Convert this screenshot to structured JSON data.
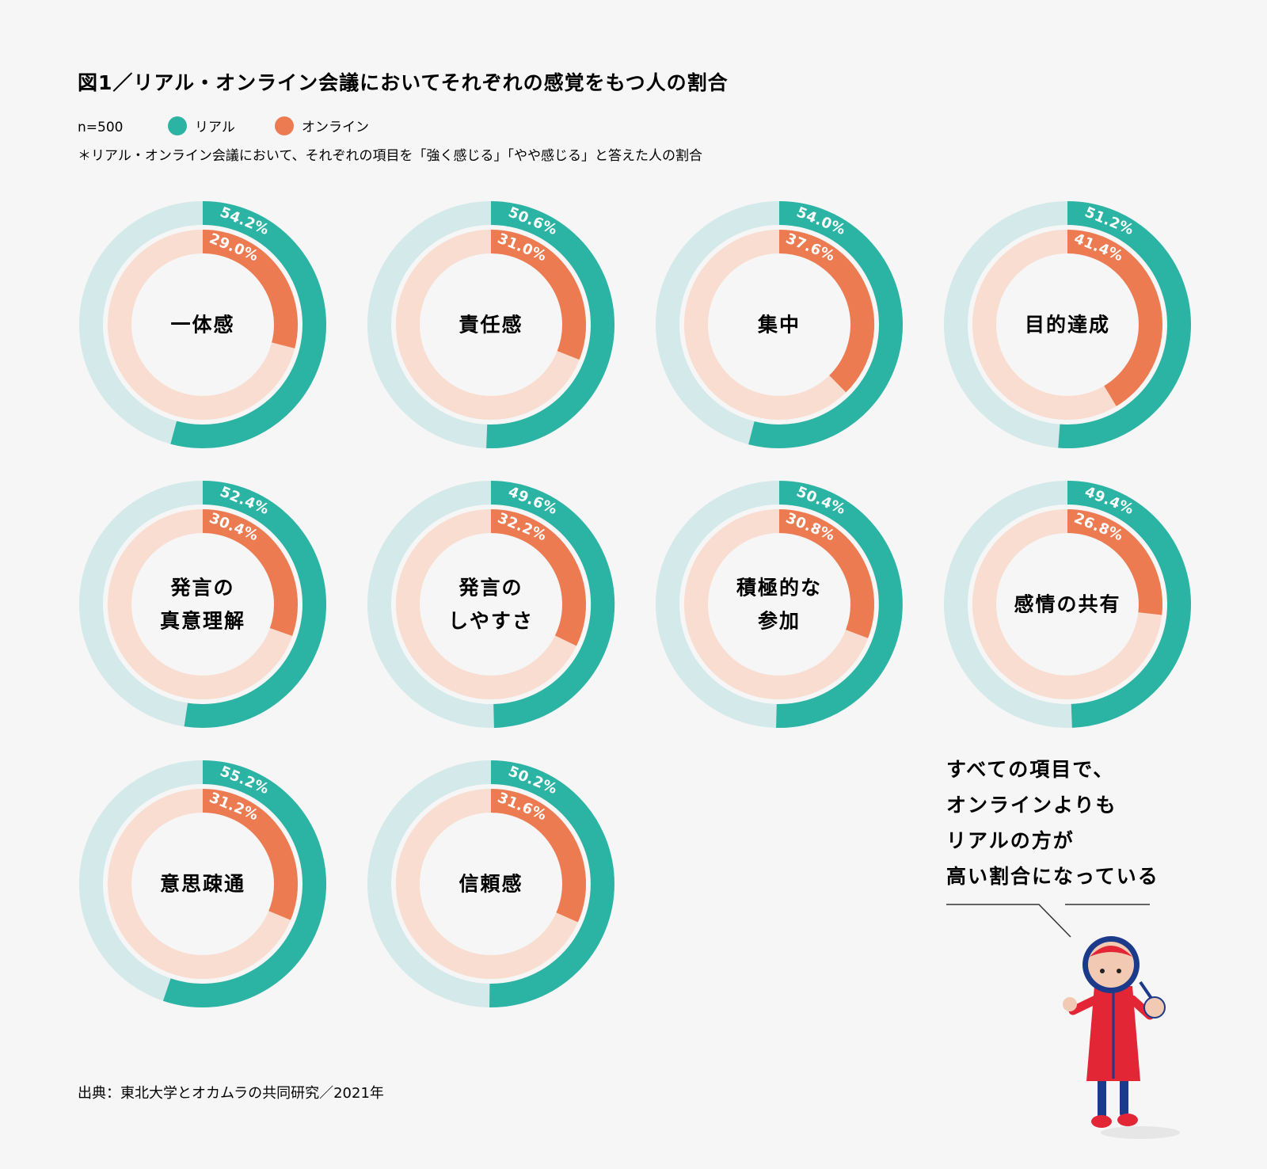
{
  "title": "図1／リアル・オンライン会議においてそれぞれの感覚をもつ人の割合",
  "sample_size": "n=500",
  "note": "＊リアル・オンライン会議において、それぞれの項目を「強く感じる」「やや感じる」と答えた人の割合",
  "source": "出典：東北大学とオカムラの共同研究／2021年",
  "callout": {
    "lines": [
      "すべての項目で、",
      "オンラインよりも",
      "リアルの方が",
      "高い割合になっている"
    ]
  },
  "colors": {
    "real": "#2bb3a3",
    "real_track": "#d3e9ea",
    "online": "#ec7b52",
    "online_track": "#f8ddd0",
    "background": "#f6f6f6"
  },
  "chart_data": {
    "type": "donut",
    "legend": [
      {
        "name": "リアル",
        "color": "#2bb3a3"
      },
      {
        "name": "オンライン",
        "color": "#ec7b52"
      }
    ],
    "categories": [
      {
        "label_lines": [
          "一体感"
        ],
        "real": 54.2,
        "online": 29.0,
        "real_label": "54.2%",
        "online_label": "29.0%"
      },
      {
        "label_lines": [
          "責任感"
        ],
        "real": 50.6,
        "online": 31.0,
        "real_label": "50.6%",
        "online_label": "31.0%"
      },
      {
        "label_lines": [
          "集中"
        ],
        "real": 54.0,
        "online": 37.6,
        "real_label": "54.0%",
        "online_label": "37.6%"
      },
      {
        "label_lines": [
          "目的達成"
        ],
        "real": 51.2,
        "online": 41.4,
        "real_label": "51.2%",
        "online_label": "41.4%"
      },
      {
        "label_lines": [
          "発言の",
          "真意理解"
        ],
        "real": 52.4,
        "online": 30.4,
        "real_label": "52.4%",
        "online_label": "30.4%"
      },
      {
        "label_lines": [
          "発言の",
          "しやすさ"
        ],
        "real": 49.6,
        "online": 32.2,
        "real_label": "49.6%",
        "online_label": "32.2%"
      },
      {
        "label_lines": [
          "積極的な",
          "参加"
        ],
        "real": 50.4,
        "online": 30.8,
        "real_label": "50.4%",
        "online_label": "30.8%"
      },
      {
        "label_lines": [
          "感情の共有"
        ],
        "real": 49.4,
        "online": 26.8,
        "real_label": "49.4%",
        "online_label": "26.8%"
      },
      {
        "label_lines": [
          "意思疎通"
        ],
        "real": 55.2,
        "online": 31.2,
        "real_label": "55.2%",
        "online_label": "31.2%"
      },
      {
        "label_lines": [
          "信頼感"
        ],
        "real": 50.2,
        "online": 31.6,
        "real_label": "50.2%",
        "online_label": "31.6%"
      }
    ]
  }
}
